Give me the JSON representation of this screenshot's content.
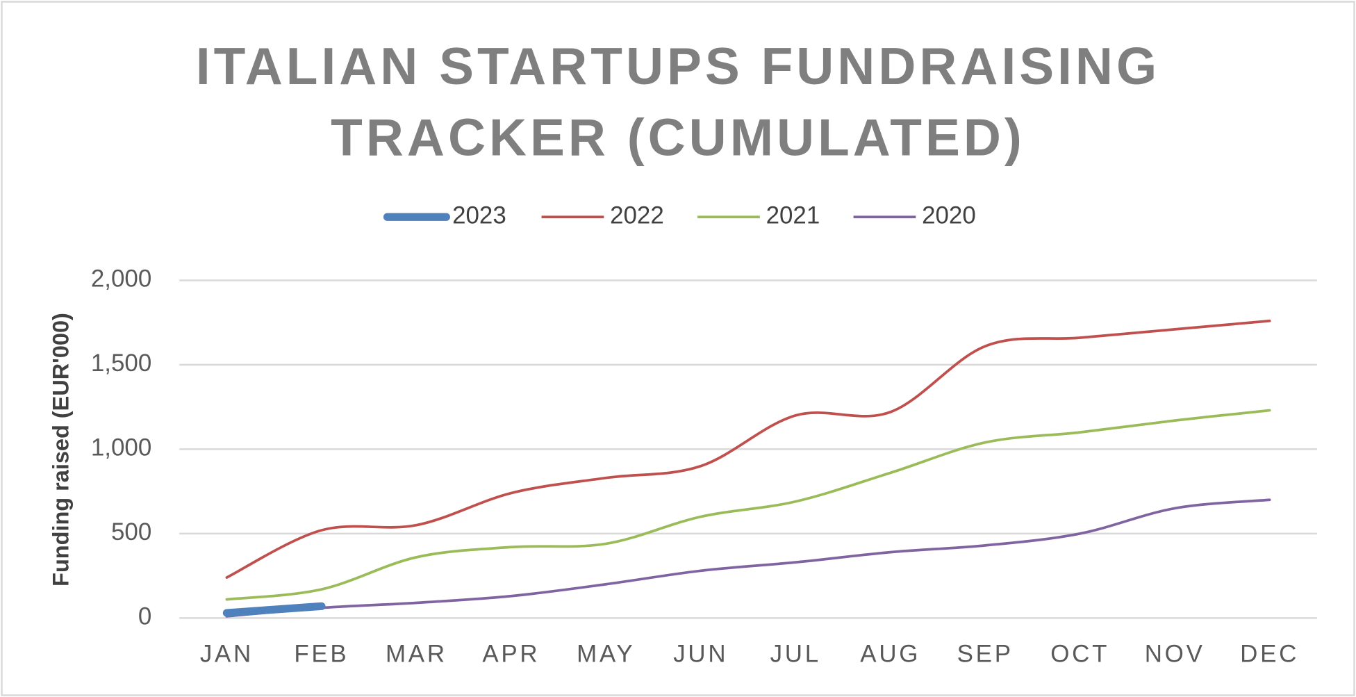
{
  "chart_data": {
    "type": "line",
    "title": "ITALIAN STARTUPS FUNDRAISING TRACKER (CUMULATED)",
    "ylabel": "Funding raised (EUR'000)",
    "categories": [
      "JAN",
      "FEB",
      "MAR",
      "APR",
      "MAY",
      "JUN",
      "JUL",
      "AUG",
      "SEP",
      "OCT",
      "NOV",
      "DEC"
    ],
    "series": [
      {
        "name": "2023",
        "color": "#4f81bd",
        "width": 9,
        "values": [
          30,
          70,
          null,
          null,
          null,
          null,
          null,
          null,
          null,
          null,
          null,
          null
        ]
      },
      {
        "name": "2022",
        "color": "#c0504d",
        "width": 3,
        "values": [
          240,
          520,
          550,
          740,
          830,
          900,
          1200,
          1220,
          1610,
          1660,
          1710,
          1760
        ]
      },
      {
        "name": "2021",
        "color": "#9bbb59",
        "width": 3,
        "values": [
          110,
          170,
          360,
          420,
          440,
          600,
          690,
          860,
          1040,
          1100,
          1170,
          1230
        ]
      },
      {
        "name": "2020",
        "color": "#8064a2",
        "width": 3,
        "values": [
          10,
          60,
          90,
          130,
          200,
          280,
          330,
          390,
          430,
          500,
          650,
          700
        ]
      }
    ],
    "ylim": [
      0,
      2000
    ],
    "yticks": [
      0,
      500,
      {
        "value": 1000,
        "label": "1,000"
      },
      {
        "value": 1500,
        "label": "1,500"
      },
      {
        "value": 2000,
        "label": "2,000"
      }
    ],
    "grid": true,
    "smooth": true,
    "legend": "top"
  }
}
